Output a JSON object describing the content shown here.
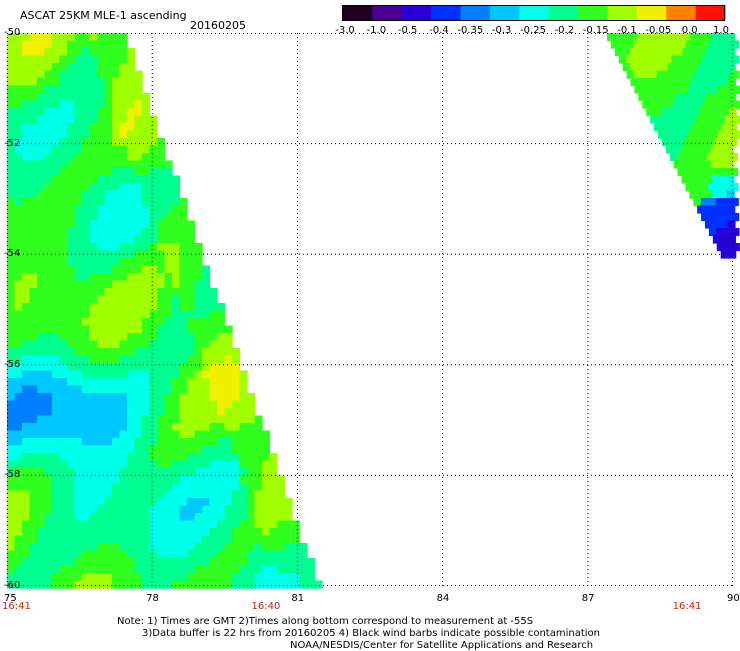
{
  "header": {
    "title": "ASCAT 25KM MLE-1 ascending",
    "date": "20160205"
  },
  "colorbar": {
    "ticks": [
      "-3.0",
      "-1.0",
      "-0.5",
      "-0.4",
      "-0.35",
      "-0.3",
      "-0.25",
      "-0.2",
      "-0.15",
      "-0.1",
      "-0.05",
      "0.0",
      "1.0"
    ],
    "colors": [
      "#200020",
      "#4a0090",
      "#2a00d8",
      "#0030ff",
      "#0080ff",
      "#00c8ff",
      "#00ffe8",
      "#00ff90",
      "#30ff20",
      "#a0ff00",
      "#f0f000",
      "#ff8000",
      "#ff1000"
    ]
  },
  "map": {
    "lon_range": [
      75,
      90
    ],
    "lat_range": [
      -60,
      -50
    ],
    "lon_ticks": [
      "75",
      "78",
      "81",
      "84",
      "87",
      "90"
    ],
    "lat_ticks": [
      "-50",
      "-52",
      "-54",
      "-56",
      "-58",
      "-60"
    ],
    "grid": "dotted",
    "swath_color": "#33ff66",
    "time_labels": [
      {
        "lon": 75,
        "text": "16:41"
      },
      {
        "lon": 80.3,
        "text": "16:40"
      },
      {
        "lon": 89,
        "text": "16:41"
      }
    ]
  },
  "notes": {
    "line1": "Note: 1) Times are GMT 2)Times along bottom correspond to measurement at -55S",
    "line2": "3)Data buffer is 22 hrs from 20160205 4) Black wind barbs indicate possible contamination",
    "line3": "NOAA/NESDIS/Center for Satellite Applications and Research"
  }
}
